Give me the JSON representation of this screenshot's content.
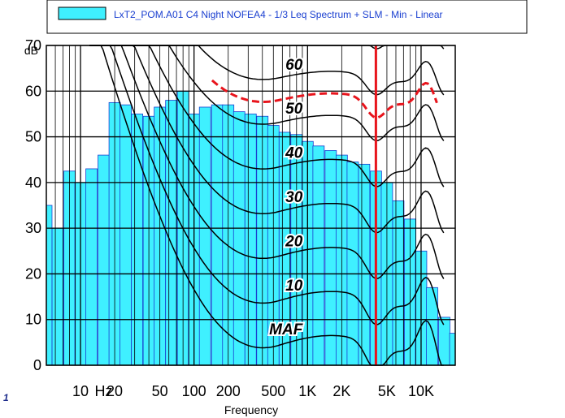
{
  "chart_data": {
    "type": "bar",
    "title": "",
    "legend": {
      "placement": "top",
      "entries": [
        {
          "label": "LxT2_POM.A01 C4 Night NOFEA4 - 1/3 Leq Spectrum + SLM - Min - Linear",
          "color": "#3ff0ff",
          "symbol": "bar"
        }
      ]
    },
    "xlabel": "Frequency",
    "ylabel": "dB",
    "x_scale": "log",
    "xlim": [
      5,
      20000
    ],
    "ylim": [
      0,
      70
    ],
    "x_tick_labels": [
      {
        "value": 10,
        "label": "10"
      },
      {
        "value": 16,
        "label": "Hz"
      },
      {
        "value": 20,
        "label": "20"
      },
      {
        "value": 50,
        "label": "50"
      },
      {
        "value": 100,
        "label": "100"
      },
      {
        "value": 200,
        "label": "200"
      },
      {
        "value": 500,
        "label": "500"
      },
      {
        "value": 1000,
        "label": "1K"
      },
      {
        "value": 2000,
        "label": "2K"
      },
      {
        "value": 5000,
        "label": "5K"
      },
      {
        "value": 10000,
        "label": "10K"
      }
    ],
    "y_ticks": [
      0,
      10,
      20,
      30,
      40,
      50,
      60,
      70
    ],
    "grid": true,
    "bar_color": "#3ff0ff",
    "bars": {
      "name": "LxT2_POM.A01 C4 Night NOFEA4 - 1/3 Leq Spectrum + SLM - Min - Linear",
      "x": [
        5,
        6.3,
        8,
        10,
        12.5,
        16,
        20,
        25,
        31.5,
        40,
        50,
        63,
        80,
        100,
        125,
        160,
        200,
        250,
        315,
        400,
        500,
        630,
        800,
        1000,
        1250,
        1600,
        2000,
        2500,
        3150,
        4000,
        5000,
        6300,
        8000,
        10000,
        12500,
        16000,
        20000
      ],
      "values": [
        35,
        30,
        42.5,
        40,
        43,
        46,
        57.5,
        57,
        55,
        54.5,
        56.5,
        58,
        60,
        55,
        56.5,
        57,
        57,
        55.5,
        55,
        54.5,
        52.5,
        51,
        50.5,
        49,
        48,
        47,
        46,
        44.5,
        44,
        42.5,
        40,
        36,
        32,
        25,
        17,
        10.5,
        7
      ]
    },
    "contours": {
      "labels": [
        "60",
        "50",
        "40",
        "30",
        "20",
        "10",
        "MAF"
      ],
      "phon_levels": [
        70,
        60,
        50,
        40,
        30,
        20,
        10,
        0
      ]
    },
    "highlight_curve": {
      "style": "dashed",
      "color": "#e8141c"
    },
    "marker_line": {
      "x": 4000,
      "color": "#e8141c"
    },
    "side_mark": "1"
  }
}
